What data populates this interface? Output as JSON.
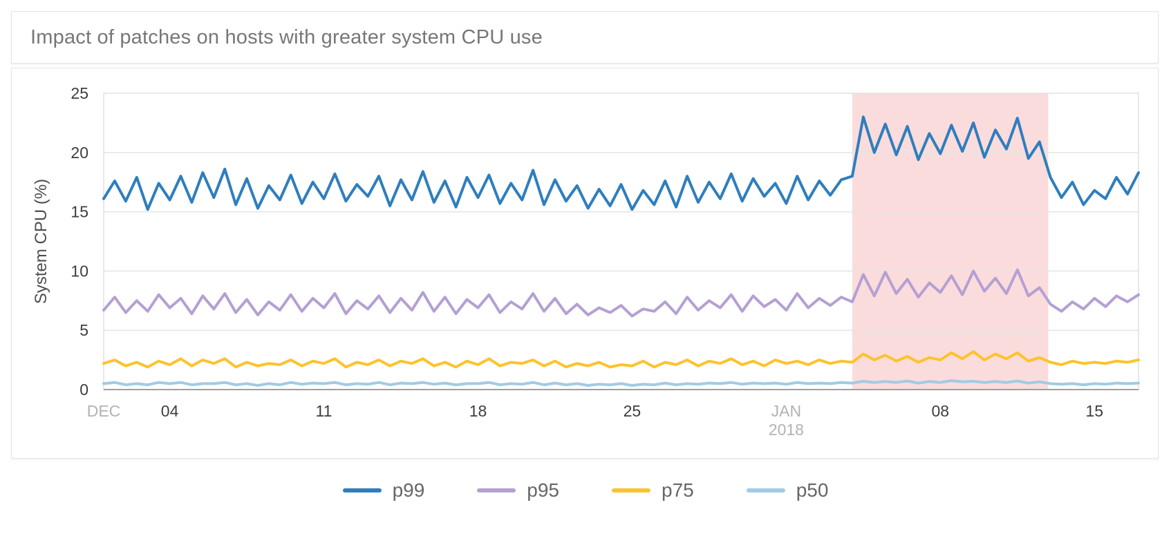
{
  "header": {
    "title": "Impact of patches on hosts with greater system CPU use"
  },
  "colors": {
    "p99": "#2e7ebe",
    "p95": "#b4a0d3",
    "p75": "#fcc32d",
    "p50": "#a2cbe3",
    "highlight": "#fbdcdc",
    "gridline": "#e4e4e4",
    "axis_line": "#9e9e9e",
    "tick_label": "#3d3d3d",
    "muted_label": "#b2b2b2"
  },
  "chart_data": {
    "type": "line",
    "title": "Impact of patches on hosts with greater system CPU use",
    "xlabel": "",
    "ylabel": "System CPU (%)",
    "ylim": [
      0,
      25
    ],
    "yticks": [
      0,
      5,
      10,
      15,
      20,
      25
    ],
    "x_unit": "days since Dec 1 2017",
    "xlim": [
      0,
      47
    ],
    "samples_per_day": 2,
    "grid": true,
    "legend_position": "bottom",
    "xticks": [
      {
        "t": 0,
        "label": "DEC",
        "muted": true
      },
      {
        "t": 3,
        "label": "04"
      },
      {
        "t": 10,
        "label": "11"
      },
      {
        "t": 17,
        "label": "18"
      },
      {
        "t": 24,
        "label": "25"
      },
      {
        "t": 31,
        "label": "JAN",
        "sublabel": "2018",
        "muted": true
      },
      {
        "t": 38,
        "label": "08"
      },
      {
        "t": 45,
        "label": "15"
      }
    ],
    "highlight_region": {
      "t_start": 34,
      "t_end": 42.9,
      "color": "#fbdcdc",
      "meaning": "patch impact period (~Jan 4 - Jan 13)"
    },
    "series": [
      {
        "name": "p99",
        "color": "#2e7ebe",
        "values": [
          16.1,
          17.6,
          15.9,
          17.9,
          15.2,
          17.4,
          16.0,
          18.0,
          15.8,
          18.3,
          16.2,
          18.6,
          15.6,
          17.8,
          15.3,
          17.2,
          16.0,
          18.1,
          15.7,
          17.5,
          16.1,
          18.2,
          15.9,
          17.3,
          16.3,
          18.0,
          15.5,
          17.7,
          16.0,
          18.4,
          15.8,
          17.6,
          15.4,
          17.9,
          16.2,
          18.1,
          15.7,
          17.4,
          16.0,
          18.5,
          15.6,
          17.7,
          15.9,
          17.2,
          15.3,
          16.9,
          15.5,
          17.3,
          15.2,
          16.8,
          15.6,
          17.6,
          15.4,
          18.0,
          15.8,
          17.5,
          16.1,
          18.2,
          15.9,
          17.8,
          16.3,
          17.4,
          15.7,
          18.0,
          16.0,
          17.6,
          16.4,
          17.7,
          18.0,
          23.0,
          20.0,
          22.4,
          19.8,
          22.2,
          19.4,
          21.6,
          19.9,
          22.3,
          20.1,
          22.5,
          19.6,
          21.9,
          20.3,
          22.9,
          19.5,
          20.9,
          17.9,
          16.2,
          17.5,
          15.6,
          16.8,
          16.1,
          17.9,
          16.5,
          18.3
        ]
      },
      {
        "name": "p95",
        "color": "#b4a0d3",
        "values": [
          6.7,
          7.8,
          6.5,
          7.5,
          6.6,
          8.0,
          6.9,
          7.7,
          6.4,
          7.9,
          6.8,
          8.1,
          6.5,
          7.6,
          6.3,
          7.4,
          6.7,
          8.0,
          6.6,
          7.7,
          6.9,
          8.1,
          6.4,
          7.5,
          6.8,
          7.9,
          6.5,
          7.7,
          6.7,
          8.2,
          6.6,
          7.8,
          6.4,
          7.6,
          6.9,
          8.0,
          6.5,
          7.4,
          6.8,
          8.1,
          6.6,
          7.7,
          6.4,
          7.2,
          6.3,
          6.9,
          6.5,
          7.1,
          6.2,
          6.8,
          6.6,
          7.4,
          6.4,
          7.8,
          6.7,
          7.5,
          6.9,
          8.0,
          6.6,
          7.9,
          7.0,
          7.6,
          6.7,
          8.1,
          6.9,
          7.7,
          7.1,
          7.8,
          7.4,
          9.7,
          7.9,
          9.9,
          8.1,
          9.3,
          7.8,
          9.0,
          8.2,
          9.6,
          8.0,
          10.0,
          8.3,
          9.4,
          8.1,
          10.1,
          7.9,
          8.6,
          7.2,
          6.6,
          7.4,
          6.8,
          7.7,
          7.0,
          7.9,
          7.4,
          8.0
        ]
      },
      {
        "name": "p75",
        "color": "#fcc32d",
        "values": [
          2.2,
          2.5,
          2.0,
          2.3,
          1.9,
          2.4,
          2.1,
          2.6,
          2.0,
          2.5,
          2.2,
          2.6,
          1.9,
          2.3,
          2.0,
          2.2,
          2.1,
          2.5,
          2.0,
          2.4,
          2.2,
          2.6,
          1.9,
          2.3,
          2.1,
          2.5,
          2.0,
          2.4,
          2.2,
          2.6,
          2.0,
          2.3,
          1.9,
          2.4,
          2.1,
          2.6,
          2.0,
          2.3,
          2.2,
          2.5,
          2.0,
          2.4,
          1.9,
          2.2,
          2.0,
          2.3,
          1.9,
          2.1,
          2.0,
          2.4,
          1.9,
          2.3,
          2.1,
          2.5,
          2.0,
          2.4,
          2.2,
          2.6,
          2.1,
          2.4,
          2.0,
          2.5,
          2.2,
          2.4,
          2.1,
          2.5,
          2.2,
          2.4,
          2.3,
          3.0,
          2.5,
          2.9,
          2.4,
          2.8,
          2.3,
          2.7,
          2.5,
          3.1,
          2.6,
          3.2,
          2.5,
          3.0,
          2.6,
          3.1,
          2.4,
          2.7,
          2.3,
          2.1,
          2.4,
          2.2,
          2.3,
          2.2,
          2.4,
          2.3,
          2.5
        ]
      },
      {
        "name": "p50",
        "color": "#a2cbe3",
        "values": [
          0.5,
          0.6,
          0.4,
          0.5,
          0.4,
          0.6,
          0.5,
          0.6,
          0.4,
          0.5,
          0.5,
          0.6,
          0.4,
          0.5,
          0.35,
          0.5,
          0.4,
          0.6,
          0.45,
          0.55,
          0.5,
          0.6,
          0.4,
          0.5,
          0.45,
          0.6,
          0.4,
          0.55,
          0.5,
          0.6,
          0.45,
          0.55,
          0.4,
          0.5,
          0.5,
          0.6,
          0.4,
          0.5,
          0.45,
          0.6,
          0.4,
          0.55,
          0.4,
          0.5,
          0.35,
          0.45,
          0.4,
          0.5,
          0.35,
          0.45,
          0.4,
          0.55,
          0.4,
          0.5,
          0.45,
          0.55,
          0.5,
          0.6,
          0.45,
          0.55,
          0.5,
          0.55,
          0.45,
          0.6,
          0.5,
          0.55,
          0.5,
          0.6,
          0.55,
          0.7,
          0.6,
          0.68,
          0.6,
          0.72,
          0.55,
          0.68,
          0.6,
          0.75,
          0.65,
          0.7,
          0.6,
          0.68,
          0.6,
          0.72,
          0.55,
          0.65,
          0.5,
          0.45,
          0.5,
          0.4,
          0.5,
          0.45,
          0.55,
          0.5,
          0.55
        ]
      }
    ]
  },
  "legend": {
    "items": [
      {
        "label": "p99",
        "color": "#2e7ebe"
      },
      {
        "label": "p95",
        "color": "#b4a0d3"
      },
      {
        "label": "p75",
        "color": "#fcc32d"
      },
      {
        "label": "p50",
        "color": "#a2cbe3"
      }
    ]
  }
}
